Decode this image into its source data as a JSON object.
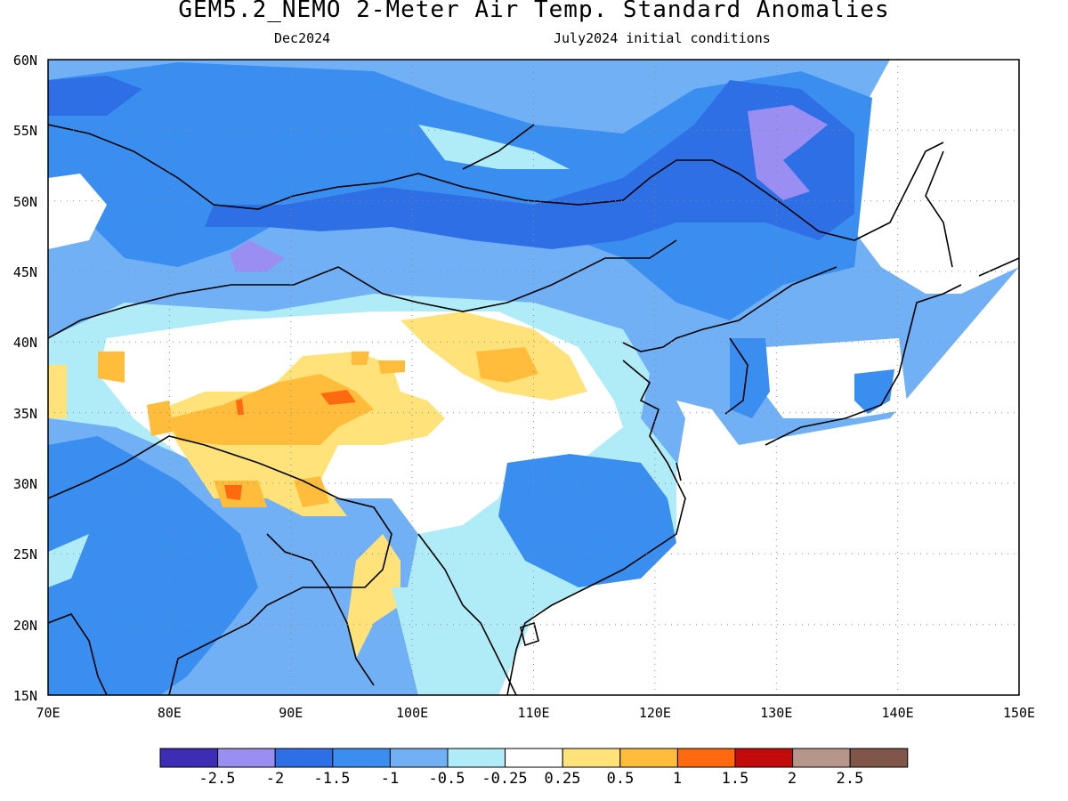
{
  "header": {
    "title": "GEM5.2_NEMO 2-Meter Air Temp. Standard Anomalies",
    "valid_month": "Dec2024",
    "init": "July2024 initial conditions"
  },
  "map": {
    "region": "East and South Asia",
    "projection": "lat-lon",
    "lon_range": [
      70,
      150
    ],
    "lat_range": [
      15,
      60
    ],
    "grid": "dotted",
    "lat_ticks": [
      "60N",
      "55N",
      "50N",
      "45N",
      "40N",
      "35N",
      "30N",
      "25N",
      "20N",
      "15N"
    ],
    "lon_ticks": [
      "70E",
      "80E",
      "90E",
      "100E",
      "110E",
      "120E",
      "130E",
      "140E",
      "150E"
    ]
  },
  "colorbar": {
    "labels": [
      "-2.5",
      "-2",
      "-1.5",
      "-1",
      "-0.5",
      "-0.25",
      "0.25",
      "0.5",
      "1",
      "1.5",
      "2",
      "2.5"
    ],
    "colors": [
      "#3d2db5",
      "#9a8ef2",
      "#2f6fe6",
      "#3a8ef0",
      "#72b0f6",
      "#b0ecf8",
      "#ffffff",
      "#ffe27a",
      "#ffbd3b",
      "#ff6a10",
      "#c30b0b",
      "#b6958a",
      "#80564a"
    ]
  },
  "field": {
    "name": "2-meter air temperature standard anomaly",
    "summary": {
      "negative": [
        "Siberia/Mongolia",
        "Kazakhstan",
        "southern China",
        "India",
        "northeast China/Russian Far East"
      ],
      "positive": [
        "Tibetan Plateau",
        "north-central China",
        "Myanmar"
      ]
    }
  }
}
